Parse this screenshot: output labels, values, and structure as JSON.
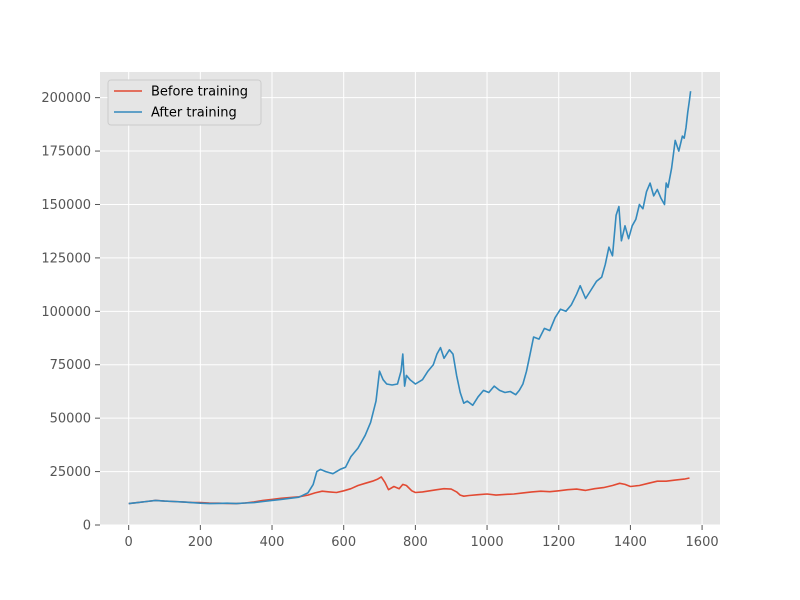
{
  "chart_data": {
    "type": "line",
    "style": "ggplot",
    "grid": true,
    "legend_position": "top-left",
    "xlim": [
      -80,
      1650
    ],
    "ylim": [
      0,
      212000
    ],
    "x_ticks": [
      0,
      200,
      400,
      600,
      800,
      1000,
      1200,
      1400,
      1600
    ],
    "y_ticks": [
      0,
      25000,
      50000,
      75000,
      100000,
      125000,
      150000,
      175000,
      200000
    ],
    "x_tick_labels": [
      "0",
      "200",
      "400",
      "600",
      "800",
      "1000",
      "1200",
      "1400",
      "1600"
    ],
    "y_tick_labels": [
      "0",
      "25000",
      "50000",
      "75000",
      "100000",
      "125000",
      "150000",
      "175000",
      "200000"
    ],
    "series": [
      {
        "name": "Before training",
        "color": "#E24A33",
        "x": [
          0,
          25,
          50,
          75,
          100,
          125,
          150,
          175,
          200,
          225,
          250,
          275,
          300,
          325,
          350,
          375,
          400,
          425,
          450,
          475,
          500,
          520,
          540,
          560,
          580,
          600,
          620,
          640,
          660,
          680,
          695,
          705,
          715,
          725,
          740,
          755,
          765,
          775,
          790,
          800,
          820,
          840,
          860,
          880,
          900,
          915,
          925,
          935,
          950,
          975,
          1000,
          1025,
          1050,
          1075,
          1100,
          1125,
          1150,
          1175,
          1200,
          1225,
          1250,
          1275,
          1300,
          1325,
          1350,
          1370,
          1385,
          1400,
          1425,
          1450,
          1475,
          1500,
          1525,
          1550,
          1565
        ],
        "y": [
          10000,
          10500,
          11000,
          11500,
          11200,
          11000,
          10800,
          10600,
          10500,
          10300,
          10200,
          10100,
          10000,
          10300,
          10800,
          11500,
          12000,
          12500,
          12800,
          13200,
          14000,
          15000,
          15800,
          15500,
          15200,
          16000,
          17000,
          18500,
          19500,
          20500,
          21500,
          22500,
          20000,
          16500,
          18000,
          17000,
          19000,
          18500,
          16000,
          15200,
          15500,
          16000,
          16500,
          17000,
          16800,
          15500,
          14000,
          13500,
          13800,
          14200,
          14500,
          14000,
          14300,
          14500,
          15000,
          15500,
          15800,
          15600,
          16000,
          16500,
          16800,
          16200,
          17000,
          17500,
          18500,
          19500,
          19000,
          18000,
          18500,
          19500,
          20500,
          20500,
          21000,
          21500,
          22000
        ]
      },
      {
        "name": "After training",
        "color": "#348ABD",
        "x": [
          0,
          25,
          50,
          75,
          100,
          125,
          150,
          175,
          200,
          225,
          250,
          275,
          300,
          325,
          350,
          375,
          400,
          425,
          450,
          475,
          500,
          515,
          525,
          535,
          550,
          570,
          590,
          605,
          620,
          640,
          660,
          675,
          690,
          700,
          710,
          720,
          735,
          750,
          760,
          765,
          770,
          775,
          785,
          800,
          820,
          835,
          850,
          860,
          870,
          880,
          895,
          905,
          915,
          925,
          935,
          945,
          960,
          975,
          990,
          1005,
          1020,
          1035,
          1050,
          1065,
          1080,
          1090,
          1100,
          1110,
          1120,
          1130,
          1145,
          1160,
          1175,
          1190,
          1205,
          1220,
          1235,
          1250,
          1260,
          1275,
          1290,
          1305,
          1320,
          1330,
          1340,
          1350,
          1360,
          1368,
          1375,
          1385,
          1395,
          1405,
          1415,
          1425,
          1435,
          1445,
          1455,
          1465,
          1475,
          1485,
          1495,
          1500,
          1505,
          1515,
          1525,
          1535,
          1545,
          1550,
          1555,
          1560,
          1565,
          1568
        ],
        "y": [
          10000,
          10500,
          11000,
          11500,
          11200,
          11000,
          10800,
          10500,
          10200,
          10000,
          10100,
          10200,
          10000,
          10300,
          10500,
          11000,
          11500,
          12000,
          12500,
          13000,
          15000,
          19000,
          25000,
          26000,
          25000,
          24000,
          26000,
          27000,
          32000,
          36000,
          42000,
          48000,
          58000,
          72000,
          68000,
          66000,
          65500,
          66000,
          72000,
          80000,
          65000,
          70000,
          68000,
          66000,
          68000,
          72000,
          75000,
          80000,
          83000,
          78000,
          82000,
          80000,
          70000,
          62000,
          57000,
          58000,
          56000,
          60000,
          63000,
          62000,
          65000,
          63000,
          62000,
          62500,
          61000,
          63000,
          66000,
          72000,
          80000,
          88000,
          87000,
          92000,
          91000,
          97000,
          101000,
          100000,
          103000,
          108000,
          112000,
          106000,
          110000,
          114000,
          116000,
          122000,
          130000,
          126000,
          145000,
          149000,
          133000,
          140000,
          134000,
          140000,
          143000,
          150000,
          148000,
          156000,
          160000,
          154000,
          157000,
          153000,
          150000,
          160000,
          158000,
          167000,
          180000,
          175000,
          182000,
          181000,
          186000,
          193000,
          199000,
          203000
        ]
      }
    ]
  }
}
